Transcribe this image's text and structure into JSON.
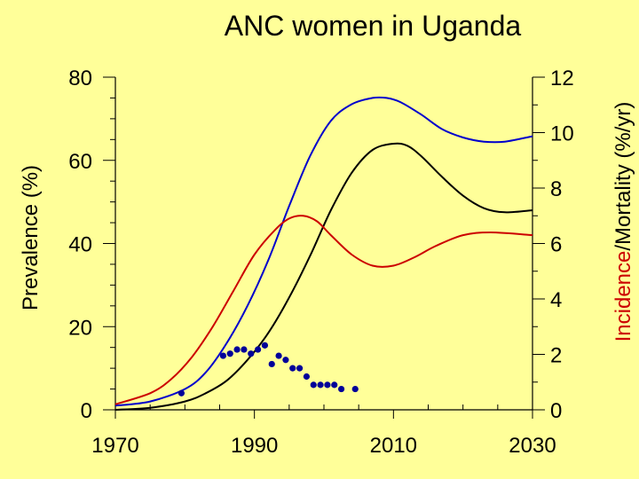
{
  "chart_data": {
    "type": "line",
    "title": "ANC women in Uganda",
    "ylabel_left": "Prevalence (%)",
    "ylabel_right_parts": [
      {
        "text": "Incidence",
        "color": "#cc0000"
      },
      {
        "text": "/",
        "color": "#000000"
      },
      {
        "text": "Mortality",
        "color": "#000000"
      },
      {
        "text": " (%/yr)",
        "color": "#000000"
      }
    ],
    "xlim": [
      1970,
      2030
    ],
    "ylim_left": [
      0,
      80
    ],
    "ylim_right": [
      0,
      12
    ],
    "x_ticks": [
      "1970",
      "1990",
      "2010",
      "2030"
    ],
    "y_left_ticks": [
      "0",
      "20",
      "40",
      "60",
      "80"
    ],
    "y_right_ticks": [
      "0",
      "2",
      "4",
      "6",
      "8",
      "10",
      "12"
    ],
    "grid": false,
    "series": [
      {
        "axis": "left",
        "color": "#0000cc",
        "style": "line",
        "x": [
          1970,
          1975,
          1980,
          1983,
          1986,
          1989,
          1992,
          1995,
          1998,
          2001,
          2004,
          2007,
          2009,
          2011,
          2014,
          2017,
          2020,
          2023,
          2026,
          2030
        ],
        "y": [
          1,
          2,
          5,
          9,
          16,
          25,
          36,
          49,
          61,
          69.5,
          73.5,
          75,
          75,
          74,
          71,
          67.5,
          65.5,
          64.5,
          64.5,
          65.8
        ]
      },
      {
        "axis": "left",
        "color": "#000000",
        "style": "line",
        "x": [
          1970,
          1975,
          1980,
          1983,
          1986,
          1989,
          1992,
          1995,
          1998,
          2001,
          2004,
          2007,
          2010,
          2012,
          2014,
          2017,
          2020,
          2023,
          2026,
          2030
        ],
        "y": [
          0,
          0.5,
          2,
          4,
          7,
          12,
          18.5,
          27,
          37,
          48,
          57,
          62.5,
          64,
          63.5,
          61,
          56,
          51.5,
          48.5,
          47.5,
          48
        ]
      },
      {
        "axis": "right",
        "color": "#cc0000",
        "style": "line",
        "x": [
          1970,
          1975,
          1978,
          1981,
          1984,
          1987,
          1990,
          1993,
          1995,
          1997,
          1999,
          2001,
          2004,
          2007,
          2010,
          2013,
          2016,
          2020,
          2024,
          2030
        ],
        "y": [
          0.2,
          0.6,
          1.1,
          1.9,
          3.0,
          4.3,
          5.6,
          6.5,
          6.9,
          7.0,
          6.8,
          6.3,
          5.6,
          5.2,
          5.2,
          5.5,
          5.9,
          6.3,
          6.4,
          6.3
        ]
      },
      {
        "axis": "left",
        "color": "#000099",
        "style": "points",
        "x": [
          1979.5,
          1985.5,
          1986.5,
          1987.5,
          1988.5,
          1989.5,
          1990.5,
          1991.5,
          1992.5,
          1993.5,
          1994.5,
          1995.5,
          1996.5,
          1997.5,
          1998.5,
          1999.5,
          2000.5,
          2001.5,
          2002.5,
          2004.5
        ],
        "y": [
          4,
          13,
          13.5,
          14.5,
          14.5,
          13.5,
          14.5,
          15.5,
          11,
          13,
          12,
          10,
          10,
          8,
          6,
          6,
          6,
          6,
          5,
          5
        ]
      }
    ]
  }
}
